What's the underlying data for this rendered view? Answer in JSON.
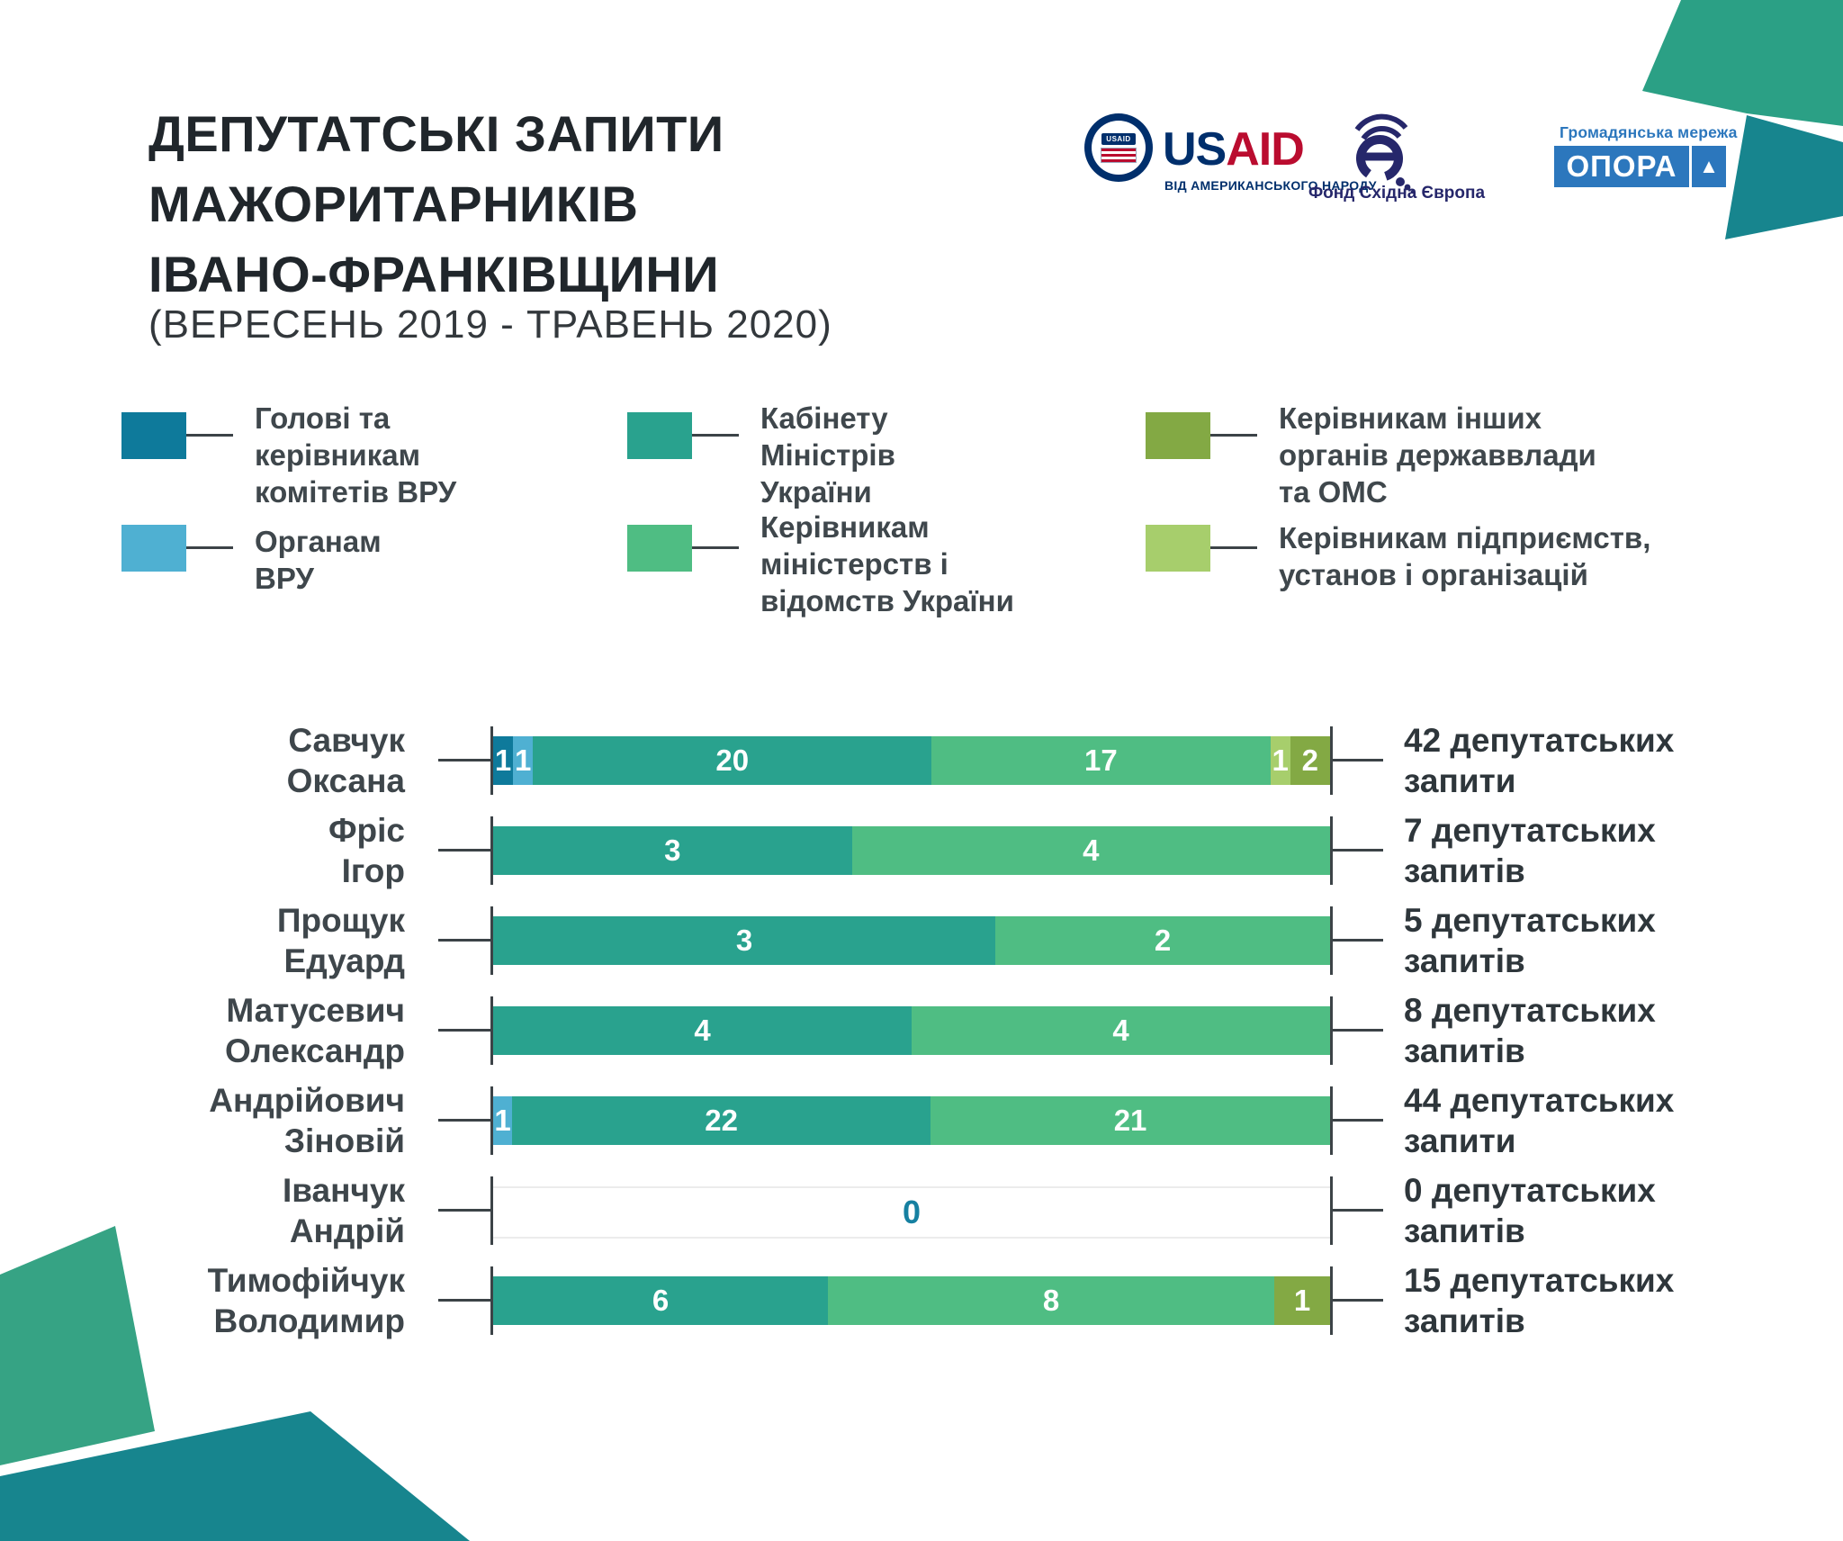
{
  "page": {
    "title": "ДЕПУТАТСЬКІ ЗАПИТИ\nМАЖОРИТАРНИКІВ\nІВАНО-ФРАНКІВЩИНИ",
    "subtitle": "(ВЕРЕСЕНЬ 2019 - ТРАВЕНЬ 2020)"
  },
  "logos": {
    "usaid": {
      "seal_text": "USAID",
      "wordmark_us": "US",
      "wordmark_aid": "AID",
      "tagline": "ВІД АМЕРИКАНСЬКОГО НАРОДУ",
      "blue": "#002f6c",
      "red": "#ba0c2f"
    },
    "eef": {
      "label": "Фонд Східна Європа",
      "color": "#26276b"
    },
    "opora": {
      "network": "Громадянська мережа",
      "name": "ОПОРА",
      "triangle": "▲",
      "color": "#2c77bd"
    }
  },
  "legend": {
    "items": [
      {
        "label": "Голові та\nкерівникам\nкомітетів ВРУ",
        "color": "#0e7a9b"
      },
      {
        "label": "Органам\nВРУ",
        "color": "#4fb0d2"
      },
      {
        "label": "Кабінету\nМіністрів\nУкраїни",
        "color": "#29a28e"
      },
      {
        "label": "Керівникам\nміністерств і\nвідомств України",
        "color": "#4fbd83"
      },
      {
        "label": "Керівникам інших\nорганів державвлади\nта ОМС",
        "color": "#83a944"
      },
      {
        "label": "Керівникам підприємств,\nустанов і організацій",
        "color": "#a7ce6c"
      }
    ]
  },
  "chart_data": {
    "type": "bar",
    "subtype": "horizontal-stacked-100-percent",
    "title": "Депутатські запити мажоритарників Івано-Франківщини",
    "period": "Вересень 2019 - Травень 2020",
    "categories": [
      "Голові та керівникам комітетів ВРУ",
      "Органам ВРУ",
      "Кабінету Міністрів України",
      "Керівникам міністерств і відомств України",
      "Керівникам інших органів державвлади та ОМС",
      "Керівникам підприємств, установ і організацій"
    ],
    "zero_label_color": "#1680a1",
    "rows": [
      {
        "name": "Савчук\nОксана",
        "total": 42,
        "total_label": "42 депутатських\nзапити",
        "segments": [
          {
            "category": 0,
            "value": 1
          },
          {
            "category": 1,
            "value": 1
          },
          {
            "category": 2,
            "value": 20
          },
          {
            "category": 3,
            "value": 17
          },
          {
            "category": 5,
            "value": 1
          },
          {
            "category": 4,
            "value": 2
          }
        ]
      },
      {
        "name": "Фріс\nІгор",
        "total": 7,
        "total_label": "7 депутатських\nзапитів",
        "segments": [
          {
            "category": 2,
            "value": 3
          },
          {
            "category": 3,
            "value": 4
          }
        ]
      },
      {
        "name": "Прощук\nЕдуард",
        "total": 5,
        "total_label": "5 депутатських\nзапитів",
        "segments": [
          {
            "category": 2,
            "value": 3
          },
          {
            "category": 3,
            "value": 2
          }
        ]
      },
      {
        "name": "Матусевич\nОлександр",
        "total": 8,
        "total_label": "8 депутатських\nзапитів",
        "segments": [
          {
            "category": 2,
            "value": 4
          },
          {
            "category": 3,
            "value": 4
          }
        ]
      },
      {
        "name": "Андрійович\nЗіновій",
        "total": 44,
        "total_label": "44 депутатських\nзапити",
        "segments": [
          {
            "category": 1,
            "value": 1
          },
          {
            "category": 2,
            "value": 22
          },
          {
            "category": 3,
            "value": 21
          }
        ]
      },
      {
        "name": "Іванчук\nАндрій",
        "total": 0,
        "total_label": "0 депутатських\nзапитів",
        "segments": []
      },
      {
        "name": "Тимофійчук\nВолодимир",
        "total": 15,
        "total_label": "15 депутатських\nзапитів",
        "segments": [
          {
            "category": 2,
            "value": 6
          },
          {
            "category": 3,
            "value": 8
          },
          {
            "category": 4,
            "value": 1
          }
        ]
      }
    ]
  },
  "decor": {
    "top_right_light": "#2ba085",
    "top_right_dark": "#17858e",
    "bottom_left_light": "#36a384",
    "bottom_left_dark": "#17858e"
  }
}
